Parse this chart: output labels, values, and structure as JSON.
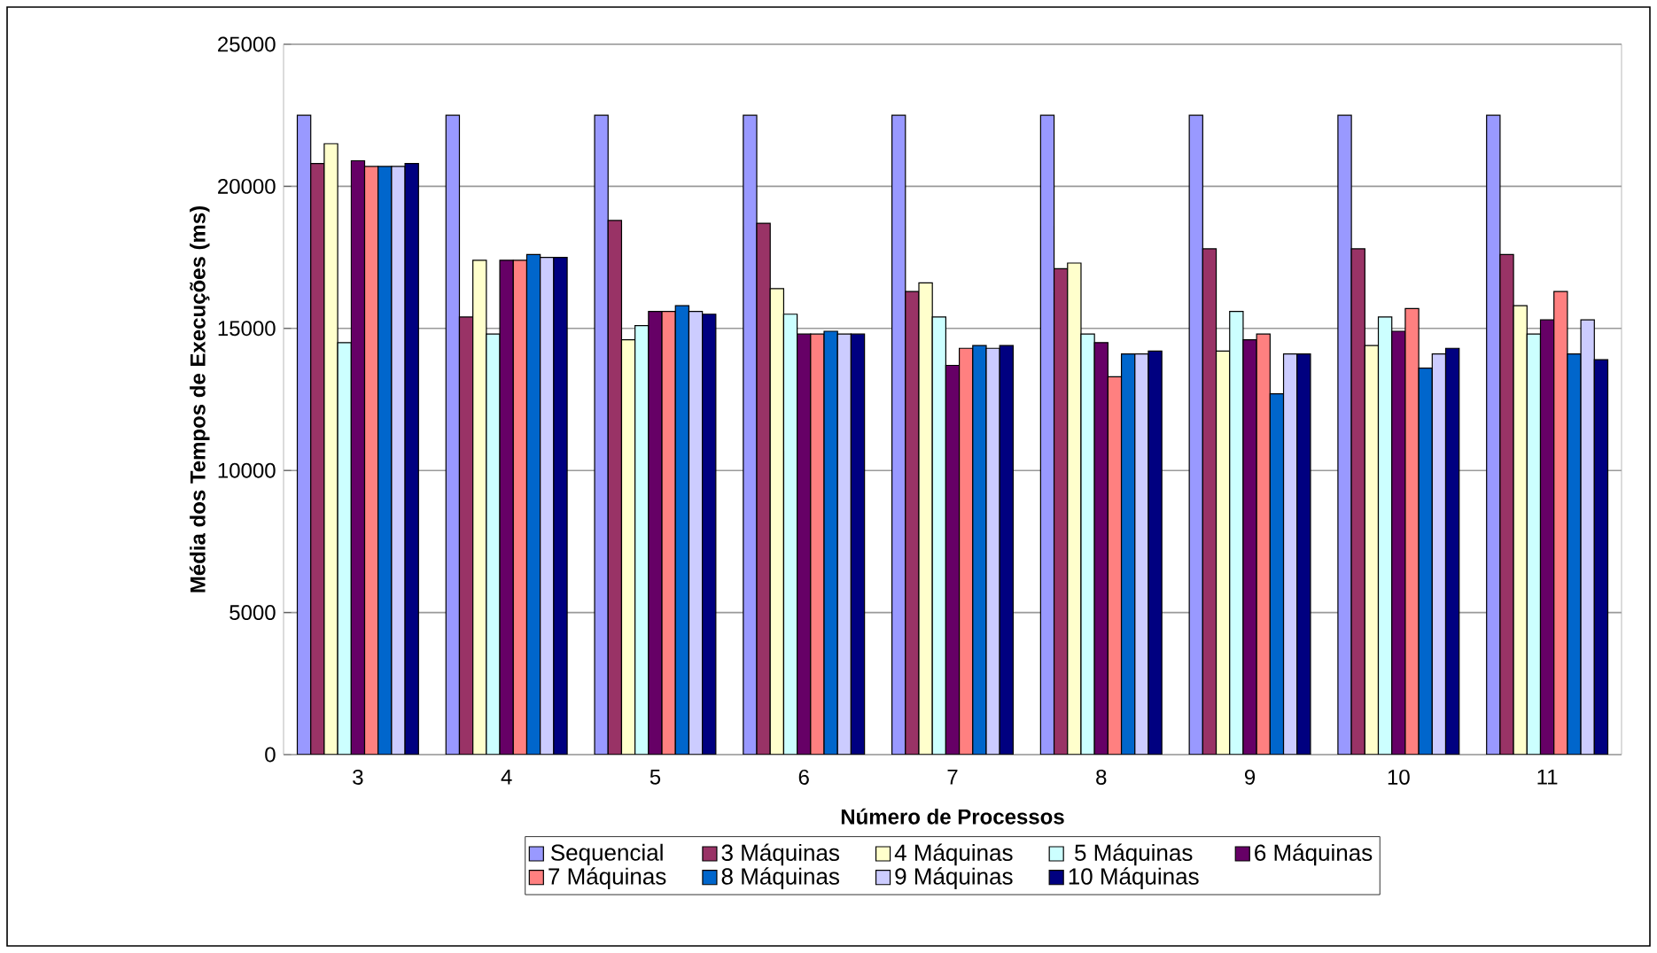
{
  "chart_data": {
    "type": "bar",
    "xlabel": "Número de Processos",
    "ylabel": "Média dos Tempos de Execuções (ms)",
    "categories": [
      "3",
      "4",
      "5",
      "6",
      "7",
      "8",
      "9",
      "10",
      "11"
    ],
    "ylim": [
      0,
      25000
    ],
    "yticks": [
      0,
      5000,
      10000,
      15000,
      20000,
      25000
    ],
    "grid": "y",
    "legend": "bottom",
    "series": [
      {
        "name": "Sequencial",
        "color": "#9999ff",
        "values": [
          22500,
          22500,
          22500,
          22500,
          22500,
          22500,
          22500,
          22500,
          22500
        ]
      },
      {
        "name": "3 Máquinas",
        "color": "#993366",
        "values": [
          20800,
          15400,
          18800,
          18700,
          16300,
          17100,
          17800,
          17800,
          17600
        ]
      },
      {
        "name": "4 Máquinas",
        "color": "#ffffcc",
        "values": [
          21500,
          17400,
          14600,
          16400,
          16600,
          17300,
          14200,
          14400,
          15800
        ]
      },
      {
        "name": "5 Máquinas",
        "color": "#ccffff",
        "values": [
          14500,
          14800,
          15100,
          15500,
          15400,
          14800,
          15600,
          15400,
          14800
        ]
      },
      {
        "name": "6 Máquinas",
        "color": "#660066",
        "values": [
          20900,
          17400,
          15600,
          14800,
          13700,
          14500,
          14600,
          14900,
          15300
        ]
      },
      {
        "name": "7 Máquinas",
        "color": "#ff8080",
        "values": [
          20700,
          17400,
          15600,
          14800,
          14300,
          13300,
          14800,
          15700,
          16300
        ]
      },
      {
        "name": "8 Máquinas",
        "color": "#0066cc",
        "values": [
          20700,
          17600,
          15800,
          14900,
          14400,
          14100,
          12700,
          13600,
          14100
        ]
      },
      {
        "name": "9 Máquinas",
        "color": "#ccccff",
        "values": [
          20700,
          17500,
          15600,
          14800,
          14300,
          14100,
          14100,
          14100,
          15300
        ]
      },
      {
        "name": "10 Máquinas",
        "color": "#000080",
        "values": [
          20800,
          17500,
          15500,
          14800,
          14400,
          14200,
          14100,
          14300,
          13900
        ]
      }
    ]
  }
}
